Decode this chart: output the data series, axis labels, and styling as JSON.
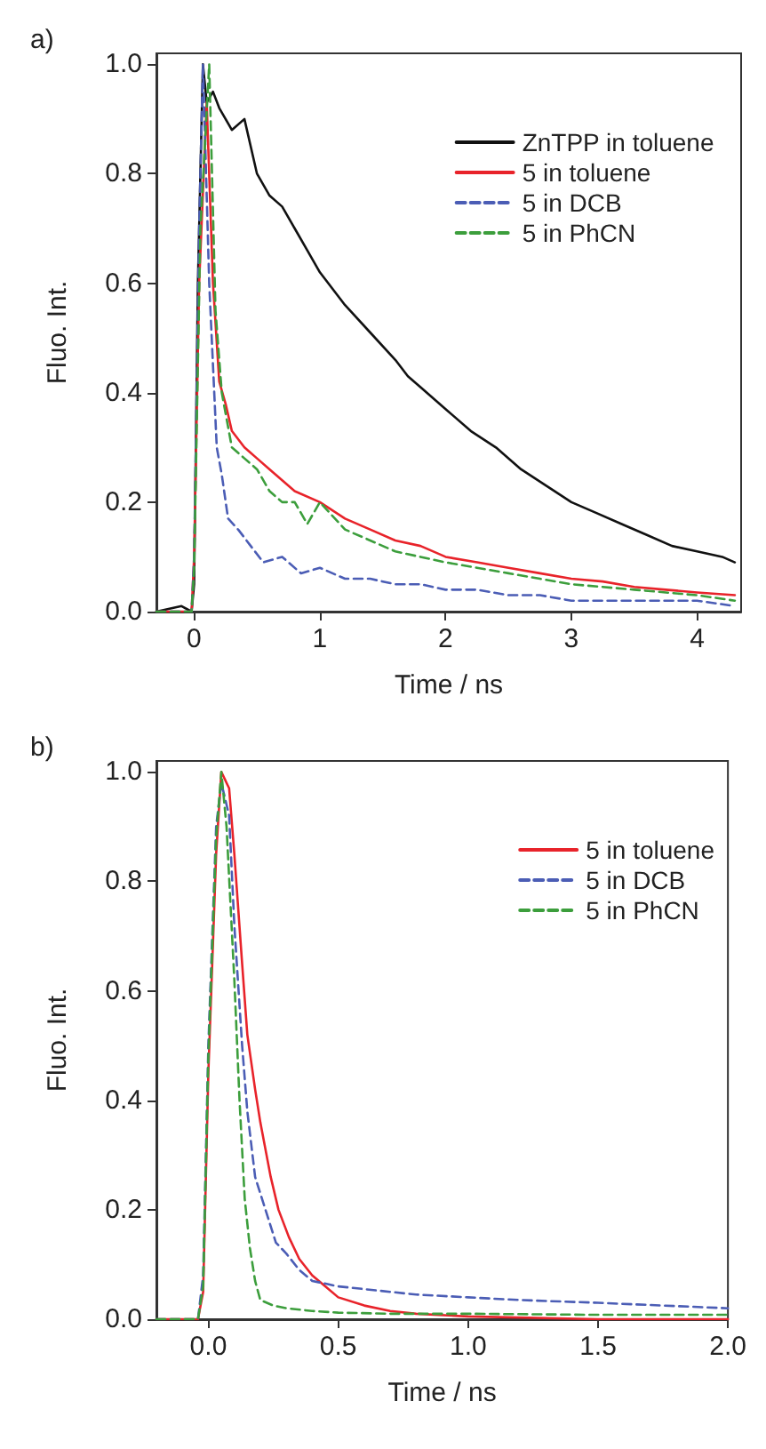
{
  "chart_data": [
    {
      "type": "line",
      "title": "a)",
      "xlabel": "Time / ns",
      "ylabel": "Fluo. Int.",
      "xlim": [
        -0.3,
        4.35
      ],
      "ylim": [
        0,
        1.02
      ],
      "xticks": [
        0,
        1,
        2,
        3,
        4
      ],
      "yticks": [
        {
          "value": 0,
          "label": "0.0"
        },
        {
          "value": 0.2,
          "label": "0.2"
        },
        {
          "value": 0.4,
          "label": "0.4"
        },
        {
          "value": 0.6,
          "label": "0.6"
        },
        {
          "value": 0.8,
          "label": "0.8"
        },
        {
          "value": 1,
          "label": "1.0"
        }
      ],
      "grid": false,
      "legend": "top right",
      "series": [
        {
          "name": "ZnTPP in toluene",
          "color": "#111111",
          "line_style": "solid",
          "x": [
            -0.3,
            -0.1,
            -0.02,
            0.0,
            0.03,
            0.07,
            0.1,
            0.15,
            0.2,
            0.3,
            0.4,
            0.5,
            0.6,
            0.7,
            0.8,
            0.9,
            1.0,
            1.2,
            1.4,
            1.6,
            1.7,
            1.8,
            2.0,
            2.2,
            2.4,
            2.6,
            2.8,
            3.0,
            3.2,
            3.4,
            3.6,
            3.8,
            4.0,
            4.2,
            4.3
          ],
          "values": [
            0.0,
            0.01,
            0.0,
            0.05,
            0.6,
            1.0,
            0.93,
            0.95,
            0.92,
            0.88,
            0.9,
            0.8,
            0.76,
            0.74,
            0.7,
            0.66,
            0.62,
            0.56,
            0.51,
            0.46,
            0.43,
            0.41,
            0.37,
            0.33,
            0.3,
            0.26,
            0.23,
            0.2,
            0.18,
            0.16,
            0.14,
            0.12,
            0.11,
            0.1,
            0.09
          ]
        },
        {
          "name": "5 in toluene",
          "color": "#e8232a",
          "line_style": "solid",
          "x": [
            -0.3,
            -0.02,
            0.0,
            0.04,
            0.1,
            0.15,
            0.2,
            0.25,
            0.3,
            0.4,
            0.5,
            0.6,
            0.7,
            0.8,
            1.0,
            1.2,
            1.4,
            1.6,
            1.8,
            2.0,
            2.25,
            2.5,
            2.75,
            3.0,
            3.25,
            3.5,
            3.75,
            4.0,
            4.3
          ],
          "values": [
            0.0,
            0.0,
            0.1,
            0.6,
            0.93,
            0.6,
            0.42,
            0.38,
            0.33,
            0.3,
            0.28,
            0.26,
            0.24,
            0.22,
            0.2,
            0.17,
            0.15,
            0.13,
            0.12,
            0.1,
            0.09,
            0.08,
            0.07,
            0.06,
            0.055,
            0.045,
            0.04,
            0.035,
            0.03
          ]
        },
        {
          "name": "5 in DCB",
          "color": "#4b5db5",
          "line_style": "dashed",
          "x": [
            -0.3,
            -0.02,
            0.0,
            0.04,
            0.07,
            0.12,
            0.18,
            0.22,
            0.27,
            0.35,
            0.45,
            0.55,
            0.7,
            0.85,
            1.0,
            1.2,
            1.4,
            1.6,
            1.8,
            2.0,
            2.25,
            2.5,
            2.75,
            3.0,
            3.5,
            4.0,
            4.3
          ],
          "values": [
            0.0,
            0.0,
            0.1,
            0.7,
            1.0,
            0.6,
            0.3,
            0.25,
            0.17,
            0.15,
            0.12,
            0.09,
            0.1,
            0.07,
            0.08,
            0.06,
            0.06,
            0.05,
            0.05,
            0.04,
            0.04,
            0.03,
            0.03,
            0.02,
            0.02,
            0.02,
            0.01
          ]
        },
        {
          "name": "5 in PhCN",
          "color": "#3c9e3c",
          "line_style": "dashed",
          "x": [
            -0.3,
            -0.02,
            0.0,
            0.05,
            0.12,
            0.17,
            0.22,
            0.3,
            0.4,
            0.5,
            0.6,
            0.7,
            0.8,
            0.9,
            1.0,
            1.2,
            1.4,
            1.6,
            1.8,
            2.0,
            2.25,
            2.5,
            2.75,
            3.0,
            3.5,
            4.0,
            4.3
          ],
          "values": [
            0.0,
            0.0,
            0.08,
            0.7,
            1.0,
            0.55,
            0.4,
            0.3,
            0.28,
            0.26,
            0.22,
            0.2,
            0.2,
            0.16,
            0.2,
            0.15,
            0.13,
            0.11,
            0.1,
            0.09,
            0.08,
            0.07,
            0.06,
            0.05,
            0.04,
            0.03,
            0.02
          ]
        }
      ]
    },
    {
      "type": "line",
      "title": "b)",
      "xlabel": "Time / ns",
      "ylabel": "Fluo. Int.",
      "xlim": [
        -0.2,
        2.0
      ],
      "ylim": [
        0,
        1.02
      ],
      "xticks": [
        {
          "value": 0,
          "label": "0.0"
        },
        {
          "value": 0.5,
          "label": "0.5"
        },
        {
          "value": 1,
          "label": "1.0"
        },
        {
          "value": 1.5,
          "label": "1.5"
        },
        {
          "value": 2,
          "label": "2.0"
        }
      ],
      "yticks": [
        {
          "value": 0,
          "label": "0.0"
        },
        {
          "value": 0.2,
          "label": "0.2"
        },
        {
          "value": 0.4,
          "label": "0.4"
        },
        {
          "value": 0.6,
          "label": "0.6"
        },
        {
          "value": 0.8,
          "label": "0.8"
        },
        {
          "value": 1,
          "label": "1.0"
        }
      ],
      "grid": false,
      "legend": "top right",
      "series": [
        {
          "name": "5 in toluene",
          "color": "#e8232a",
          "line_style": "solid",
          "x": [
            -0.2,
            -0.04,
            -0.02,
            0.0,
            0.03,
            0.05,
            0.08,
            0.1,
            0.13,
            0.15,
            0.18,
            0.2,
            0.24,
            0.27,
            0.31,
            0.35,
            0.4,
            0.45,
            0.5,
            0.6,
            0.7,
            0.8,
            1.0,
            1.5,
            2.0
          ],
          "values": [
            0.0,
            0.0,
            0.05,
            0.45,
            0.85,
            1.0,
            0.97,
            0.85,
            0.65,
            0.52,
            0.42,
            0.36,
            0.26,
            0.2,
            0.15,
            0.11,
            0.08,
            0.06,
            0.04,
            0.025,
            0.015,
            0.01,
            0.005,
            0.0,
            0.0
          ]
        },
        {
          "name": "5 in DCB",
          "color": "#4b5db5",
          "line_style": "dashed",
          "x": [
            -0.2,
            -0.04,
            -0.02,
            0.0,
            0.03,
            0.05,
            0.08,
            0.1,
            0.13,
            0.15,
            0.18,
            0.22,
            0.26,
            0.3,
            0.35,
            0.4,
            0.5,
            0.6,
            0.7,
            0.8,
            1.0,
            1.2,
            1.5,
            1.75,
            2.0
          ],
          "values": [
            0.0,
            0.0,
            0.08,
            0.5,
            0.9,
            0.98,
            0.92,
            0.72,
            0.5,
            0.38,
            0.26,
            0.2,
            0.14,
            0.12,
            0.09,
            0.07,
            0.06,
            0.055,
            0.05,
            0.045,
            0.04,
            0.035,
            0.03,
            0.025,
            0.02
          ]
        },
        {
          "name": "5 in PhCN",
          "color": "#3c9e3c",
          "line_style": "dashed",
          "x": [
            -0.2,
            -0.04,
            -0.02,
            0.0,
            0.03,
            0.05,
            0.07,
            0.1,
            0.12,
            0.14,
            0.16,
            0.18,
            0.2,
            0.25,
            0.3,
            0.4,
            0.5,
            0.7,
            1.0,
            1.5,
            2.0
          ],
          "values": [
            0.0,
            0.0,
            0.06,
            0.48,
            0.88,
            1.0,
            0.9,
            0.62,
            0.4,
            0.22,
            0.13,
            0.07,
            0.035,
            0.025,
            0.02,
            0.015,
            0.012,
            0.01,
            0.01,
            0.008,
            0.008
          ]
        }
      ]
    }
  ]
}
